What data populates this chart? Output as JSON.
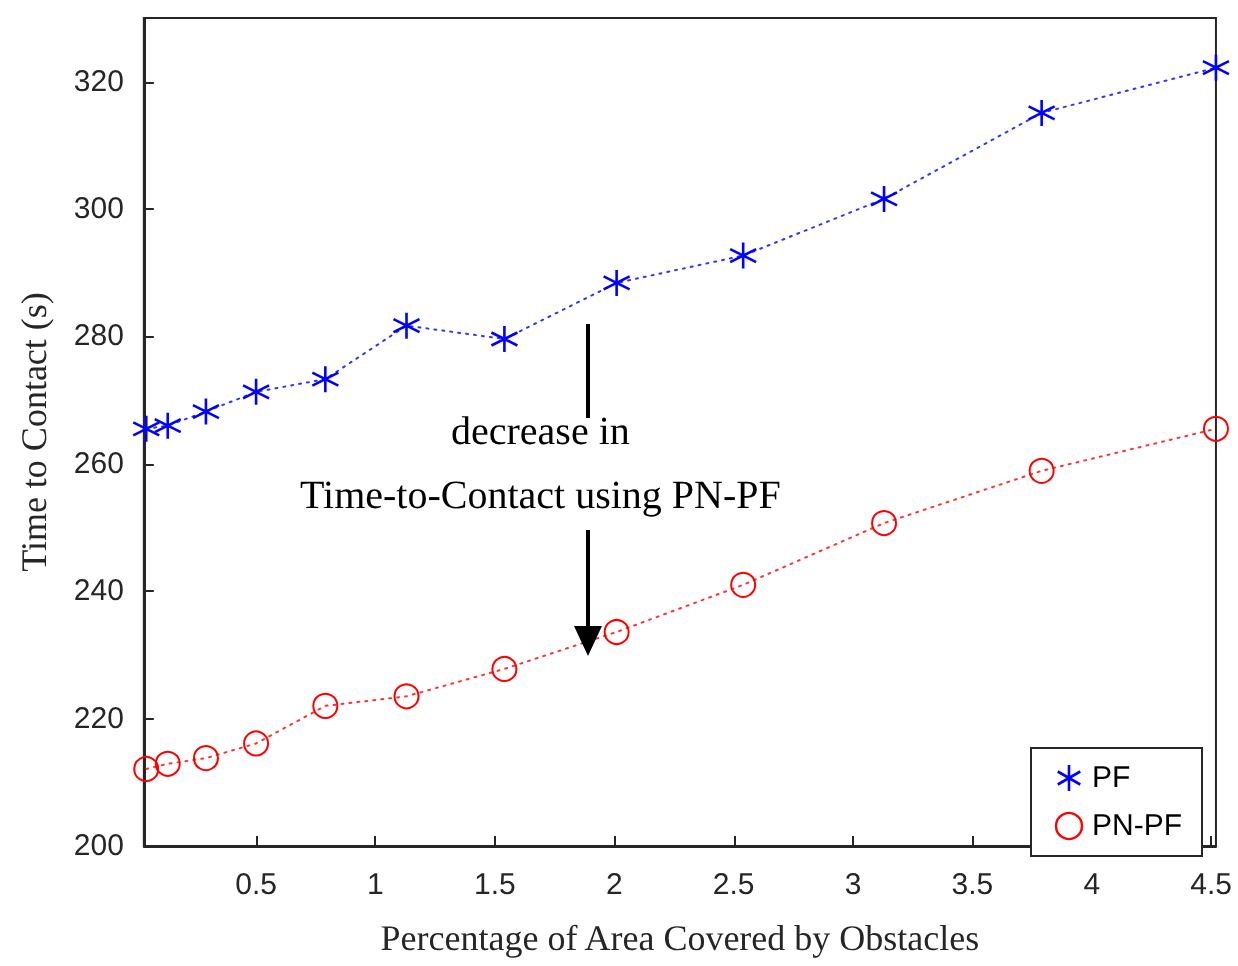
{
  "chart_data": {
    "type": "line",
    "xlabel": "Percentage of Area Covered by Obstacles",
    "ylabel": "Time to Contact (s)",
    "annotations": [
      "decrease in\nTime-to-Contact using PN-PF"
    ],
    "x": [
      0.04,
      0.13,
      0.29,
      0.5,
      0.79,
      1.13,
      1.54,
      2.01,
      2.54,
      3.13,
      3.79,
      4.52
    ],
    "series": [
      {
        "name": "PF",
        "color": "#0000ff",
        "marker": "cross",
        "values": [
          265.5,
          266.0,
          268.2,
          271.3,
          273.3,
          281.7,
          279.6,
          288.4,
          292.7,
          301.6,
          315.1,
          322.2
        ]
      },
      {
        "name": "PN-PF",
        "color": "#ff0000",
        "marker": "circle",
        "values": [
          212.1,
          212.9,
          213.8,
          216.1,
          222.0,
          223.5,
          227.8,
          233.6,
          241.0,
          250.7,
          258.9,
          265.5
        ]
      }
    ],
    "xlim": [
      0.03,
      4.52
    ],
    "xticks": [
      0.5,
      1,
      1.5,
      2,
      2.5,
      3,
      3.5,
      4,
      4.5
    ],
    "ylim": [
      200,
      330
    ],
    "yticks": [
      200,
      220,
      240,
      260,
      280,
      300,
      320
    ],
    "grid": false,
    "legend": "bottom right",
    "line_style": "dotted"
  }
}
